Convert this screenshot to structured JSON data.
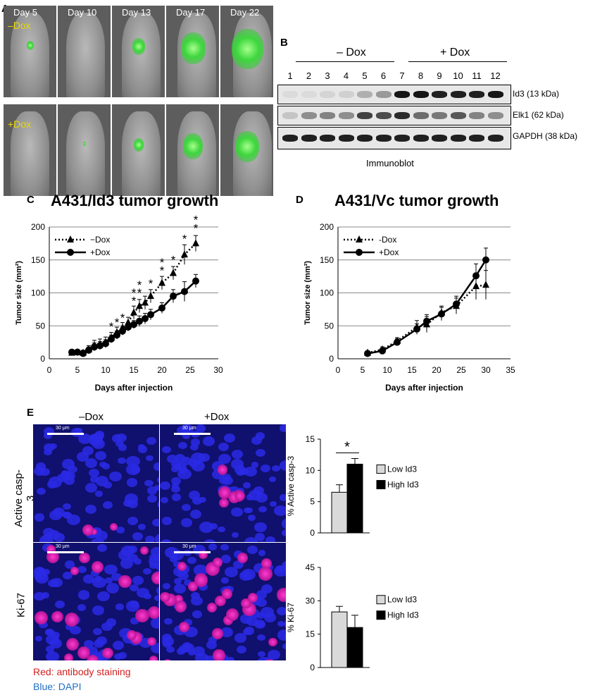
{
  "panels": {
    "a": "A",
    "b": "B",
    "c": "C",
    "d": "D",
    "e": "E"
  },
  "panel_a": {
    "days": [
      "Day 5",
      "Day 10",
      "Day 13",
      "Day 17",
      "Day 22"
    ],
    "row_labels": [
      "–Dox",
      "+Dox"
    ],
    "label_color": "#e8d800",
    "tumor_color": "#3dd63d"
  },
  "panel_b": {
    "group_labels": [
      "– Dox",
      "+ Dox"
    ],
    "lanes": [
      "1",
      "2",
      "3",
      "4",
      "5",
      "6",
      "7",
      "8",
      "9",
      "10",
      "11",
      "12"
    ],
    "bands": [
      {
        "label": "Id3 (13 kDa)",
        "intensity": [
          0.05,
          0.05,
          0.08,
          0.1,
          0.25,
          0.35,
          0.95,
          0.95,
          0.9,
          0.9,
          0.9,
          0.95
        ]
      },
      {
        "label": "Elk1 (62 kDa)",
        "intensity": [
          0.15,
          0.4,
          0.45,
          0.4,
          0.75,
          0.7,
          0.85,
          0.55,
          0.5,
          0.65,
          0.45,
          0.4
        ]
      },
      {
        "label": "GAPDH (38 kDa)",
        "intensity": [
          0.9,
          0.9,
          0.9,
          0.9,
          0.9,
          0.9,
          0.9,
          0.9,
          0.9,
          0.9,
          0.9,
          0.9
        ]
      }
    ],
    "caption": "Immunoblot"
  },
  "chart_data": [
    {
      "type": "line",
      "title": "A431/Id3 tumor growth",
      "xlabel": "Days after injection",
      "ylabel": "Tumor size (mm²)",
      "xlim": [
        0,
        30
      ],
      "ylim": [
        0,
        200
      ],
      "xticks": [
        0,
        5,
        10,
        15,
        20,
        25,
        30
      ],
      "yticks": [
        0,
        50,
        100,
        150,
        200
      ],
      "grid": "horizontal",
      "legend": "top-left",
      "series": [
        {
          "name": "−Dox",
          "marker": "triangle",
          "style": "dotted",
          "x": [
            4,
            5,
            6,
            7,
            8,
            9,
            10,
            11,
            12,
            13,
            14,
            15,
            16,
            17,
            18,
            20,
            22,
            24,
            26
          ],
          "y": [
            9,
            10,
            9,
            14,
            20,
            22,
            25,
            32,
            40,
            47,
            55,
            70,
            80,
            85,
            95,
            115,
            130,
            158,
            175
          ],
          "err": [
            4,
            4,
            4,
            6,
            8,
            8,
            8,
            8,
            8,
            8,
            8,
            10,
            10,
            10,
            10,
            10,
            10,
            15,
            12
          ]
        },
        {
          "name": "+Dox",
          "marker": "circle",
          "style": "solid",
          "x": [
            4,
            5,
            6,
            7,
            8,
            9,
            10,
            11,
            12,
            13,
            14,
            15,
            16,
            17,
            18,
            20,
            22,
            24,
            26
          ],
          "y": [
            10,
            10,
            8,
            13,
            18,
            20,
            23,
            30,
            36,
            42,
            48,
            52,
            57,
            61,
            67,
            77,
            95,
            102,
            118
          ],
          "err": [
            4,
            4,
            4,
            5,
            6,
            6,
            6,
            6,
            6,
            6,
            6,
            6,
            8,
            8,
            8,
            8,
            10,
            15,
            10
          ]
        }
      ],
      "significance": [
        {
          "x": 11,
          "y": 43,
          "label": "*"
        },
        {
          "x": 12,
          "y": 49,
          "label": "*"
        },
        {
          "x": 13,
          "y": 56,
          "label": "*"
        },
        {
          "x": 15,
          "y": 82,
          "label": "*"
        },
        {
          "x": 15,
          "y": 94,
          "label": "*"
        },
        {
          "x": 16,
          "y": 94,
          "label": "*"
        },
        {
          "x": 16,
          "y": 106,
          "label": "*"
        },
        {
          "x": 18,
          "y": 108,
          "label": "*"
        },
        {
          "x": 20,
          "y": 128,
          "label": "*"
        },
        {
          "x": 20,
          "y": 140,
          "label": "*"
        },
        {
          "x": 22,
          "y": 144,
          "label": "*"
        },
        {
          "x": 24,
          "y": 176,
          "label": "*"
        },
        {
          "x": 26,
          "y": 192,
          "label": "*"
        },
        {
          "x": 26,
          "y": 205,
          "label": "*"
        }
      ]
    },
    {
      "type": "line",
      "title": "A431/Vc tumor growth",
      "xlabel": "Days after injection",
      "ylabel": "Tumor size (mm²)",
      "xlim": [
        0,
        35
      ],
      "ylim": [
        0,
        200
      ],
      "xticks": [
        0,
        5,
        10,
        15,
        20,
        25,
        30,
        35
      ],
      "yticks": [
        0,
        50,
        100,
        150,
        200
      ],
      "grid": "horizontal",
      "legend": "top-left",
      "series": [
        {
          "name": "-Dox",
          "marker": "triangle",
          "style": "dotted",
          "x": [
            6,
            9,
            12,
            16,
            18,
            21,
            24,
            28,
            30
          ],
          "y": [
            9,
            14,
            27,
            48,
            52,
            70,
            80,
            110,
            112
          ],
          "err": [
            3,
            4,
            5,
            10,
            12,
            10,
            12,
            20,
            22
          ]
        },
        {
          "name": "+Dox",
          "marker": "circle",
          "style": "solid",
          "x": [
            6,
            9,
            12,
            16,
            18,
            21,
            24,
            28,
            30
          ],
          "y": [
            8,
            12,
            25,
            45,
            57,
            68,
            83,
            126,
            150
          ],
          "err": [
            3,
            4,
            5,
            8,
            10,
            10,
            12,
            18,
            18
          ]
        }
      ]
    },
    {
      "type": "bar",
      "ylabel": "% Active casp-3",
      "ylim": [
        0,
        15
      ],
      "yticks": [
        0,
        5,
        10,
        15
      ],
      "categories": [
        "Low Id3",
        "High Id3"
      ],
      "values": [
        6.5,
        11
      ],
      "errors": [
        1.2,
        0.9
      ],
      "colors": [
        "#d9d9d9",
        "#000000"
      ],
      "legend": "right",
      "significance": "*"
    },
    {
      "type": "bar",
      "ylabel": "% Ki-67",
      "ylim": [
        0,
        45
      ],
      "yticks": [
        0,
        15,
        30,
        45
      ],
      "categories": [
        "Low Id3",
        "High Id3"
      ],
      "values": [
        25,
        18
      ],
      "errors": [
        2.5,
        5.5
      ],
      "colors": [
        "#d9d9d9",
        "#000000"
      ],
      "legend": "right"
    }
  ],
  "panel_e": {
    "col_labels": [
      "–Dox",
      "+Dox"
    ],
    "row_labels": [
      "Active casp-3",
      "Ki-67"
    ],
    "scale_bar": "30 μm",
    "notes": [
      {
        "text": "Red: antibody staining",
        "color": "#d21e1e"
      },
      {
        "text": "Blue: DAPI",
        "color": "#1f6fc4"
      }
    ]
  }
}
